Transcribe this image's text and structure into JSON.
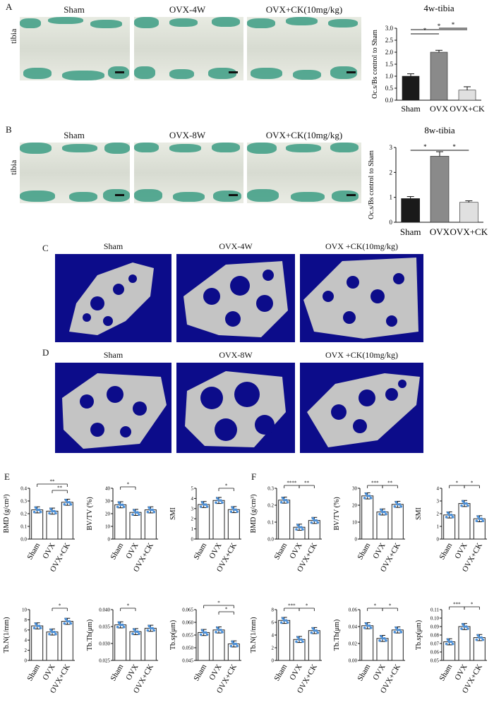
{
  "panels": {
    "A": {
      "label": "A",
      "row_label": "tibia",
      "cols": [
        "Sham",
        "OVX-4W",
        "OVX+CK(10mg/kg)"
      ]
    },
    "B": {
      "label": "B",
      "row_label": "tibia",
      "cols": [
        "Sham",
        "OVX-8W",
        "OVX+CK(10mg/kg)"
      ]
    },
    "C": {
      "label": "C",
      "cols": [
        "Sham",
        "OVX-4W",
        "OVX +CK(10mg/kg)"
      ]
    },
    "D": {
      "label": "D",
      "cols": [
        "Sham",
        "OVX-8W",
        "OVX +CK(10mg/kg)"
      ]
    },
    "E": {
      "label": "E"
    },
    "F": {
      "label": "F"
    }
  },
  "colors": {
    "ct_bg": "#0c0c8a",
    "bone": "#c8c8c8",
    "stain_green": "#3c9c84",
    "dark_bar": "#1a1a1a",
    "mid_bar": "#8a8a8a",
    "light_bar": "#e0e0e0",
    "dot_blue": "#4a8fd8"
  },
  "chart_data": [
    {
      "id": "A-chart",
      "type": "bar",
      "title": "4w-tibia",
      "ylabel": "Oc.s/Bs control to Sham",
      "categories": [
        "Sham",
        "OVX",
        "OVX+CK"
      ],
      "values": [
        1.0,
        2.0,
        0.42
      ],
      "errors": [
        0.1,
        0.08,
        0.14
      ],
      "ylim": [
        0,
        3.0
      ],
      "yticks": [
        "0.0",
        "0.5",
        "1.0",
        "1.5",
        "2.0",
        "2.5",
        "3.0"
      ],
      "annotations": [
        "*",
        "*",
        "*"
      ]
    },
    {
      "id": "B-chart",
      "type": "bar",
      "title": "8w-tibia",
      "ylabel": "Oc.s/Bs control to Sham",
      "categories": [
        "Sham",
        "OVX",
        "OVX+CK"
      ],
      "values": [
        0.95,
        2.65,
        0.8
      ],
      "errors": [
        0.08,
        0.18,
        0.06
      ],
      "ylim": [
        0,
        3
      ],
      "yticks": [
        "0",
        "1",
        "2",
        "3"
      ],
      "annotations": [
        "*",
        "*"
      ]
    },
    {
      "id": "E-BMD",
      "type": "bar",
      "ylabel": "BMD (g/cm³)",
      "categories": [
        "Sham",
        "OVX",
        "OVX+CK"
      ],
      "values": [
        0.23,
        0.22,
        0.29
      ],
      "ylim": [
        0,
        0.4
      ],
      "yticks": [
        "0.0",
        "0.1",
        "0.2",
        "0.3",
        "0.4"
      ],
      "annotations": [
        "**",
        "**"
      ]
    },
    {
      "id": "E-BVTV",
      "type": "bar",
      "ylabel": "BV/TV (%)",
      "categories": [
        "Sham",
        "OVX",
        "OVX+CK"
      ],
      "values": [
        27,
        21,
        23
      ],
      "ylim": [
        0,
        40
      ],
      "yticks": [
        "0",
        "10",
        "20",
        "30",
        "40"
      ],
      "annotations": [
        "*"
      ]
    },
    {
      "id": "E-SMI",
      "type": "bar",
      "ylabel": "SMI",
      "categories": [
        "Sham",
        "OVX",
        "OVX+CK"
      ],
      "values": [
        3.4,
        3.8,
        2.9
      ],
      "ylim": [
        0,
        5
      ],
      "yticks": [
        "0",
        "1",
        "2",
        "3",
        "4",
        "5"
      ],
      "annotations": [
        "*"
      ]
    },
    {
      "id": "E-TbN",
      "type": "bar",
      "ylabel": "Tb.N(1/mm)",
      "categories": [
        "Sham",
        "OVX",
        "OVX+CK"
      ],
      "values": [
        6.8,
        5.6,
        7.7
      ],
      "ylim": [
        0,
        10
      ],
      "yticks": [
        "0",
        "2",
        "4",
        "6",
        "8",
        "10"
      ],
      "annotations": [
        "*"
      ]
    },
    {
      "id": "E-TbTh",
      "type": "bar",
      "ylabel": "Tb.Th(μm)",
      "categories": [
        "Sham",
        "OVX",
        "OVX+CK"
      ],
      "values": [
        0.0355,
        0.0335,
        0.0345
      ],
      "ylim": [
        0.025,
        0.04
      ],
      "yticks": [
        "0.025",
        "0.030",
        "0.035",
        "0.040"
      ],
      "annotations": [
        "*"
      ]
    },
    {
      "id": "E-TbSp",
      "type": "bar",
      "ylabel": "Tb.sp(μm)",
      "categories": [
        "Sham",
        "OVX",
        "OVX+CK"
      ],
      "values": [
        0.056,
        0.057,
        0.0515
      ],
      "ylim": [
        0.045,
        0.065
      ],
      "yticks": [
        "0.045",
        "0.050",
        "0.055",
        "0.060",
        "0.065"
      ],
      "annotations": [
        "*",
        "*"
      ]
    },
    {
      "id": "F-BMD",
      "type": "bar",
      "ylabel": "BMD (g/cm³)",
      "categories": [
        "Sham",
        "OVX",
        "OVX+CK"
      ],
      "values": [
        0.23,
        0.07,
        0.11
      ],
      "ylim": [
        0,
        0.3
      ],
      "yticks": [
        "0.0",
        "0.1",
        "0.2",
        "0.3"
      ],
      "annotations": [
        "****",
        "**"
      ]
    },
    {
      "id": "F-BVTV",
      "type": "bar",
      "ylabel": "BV/TV (%)",
      "categories": [
        "Sham",
        "OVX",
        "OVX+CK"
      ],
      "values": [
        25.5,
        16,
        20.5
      ],
      "ylim": [
        0,
        30
      ],
      "yticks": [
        "0",
        "10",
        "20",
        "30"
      ],
      "annotations": [
        "***",
        "**"
      ]
    },
    {
      "id": "F-SMI",
      "type": "bar",
      "ylabel": "SMI",
      "categories": [
        "Sham",
        "OVX",
        "OVX+CK"
      ],
      "values": [
        1.9,
        2.8,
        1.6
      ],
      "ylim": [
        0,
        4
      ],
      "yticks": [
        "0",
        "1",
        "2",
        "3",
        "4"
      ],
      "annotations": [
        "*",
        "*"
      ]
    },
    {
      "id": "F-TbN",
      "type": "bar",
      "ylabel": "Tb.N(1/mm)",
      "categories": [
        "Sham",
        "OVX",
        "OVX+CK"
      ],
      "values": [
        6.3,
        3.3,
        4.7
      ],
      "ylim": [
        0,
        8
      ],
      "yticks": [
        "0",
        "2",
        "4",
        "6",
        "8"
      ],
      "annotations": [
        "***",
        "*"
      ]
    },
    {
      "id": "F-TbTh",
      "type": "bar",
      "ylabel": "Tb.Th(μm)",
      "categories": [
        "Sham",
        "OVX",
        "OVX+CK"
      ],
      "values": [
        0.041,
        0.026,
        0.036
      ],
      "ylim": [
        0,
        0.06
      ],
      "yticks": [
        "0.00",
        "0.02",
        "0.04",
        "0.06"
      ],
      "annotations": [
        "*",
        "*"
      ]
    },
    {
      "id": "F-TbSp",
      "type": "bar",
      "ylabel": "Tb.sp(μm)",
      "categories": [
        "Sham",
        "OVX",
        "OVX+CK"
      ],
      "values": [
        0.072,
        0.09,
        0.077
      ],
      "ylim": [
        0.05,
        0.11
      ],
      "yticks": [
        "0.05",
        "0.06",
        "0.07",
        "0.08",
        "0.09",
        "0.10",
        "0.11"
      ],
      "annotations": [
        "***",
        "*"
      ]
    }
  ]
}
